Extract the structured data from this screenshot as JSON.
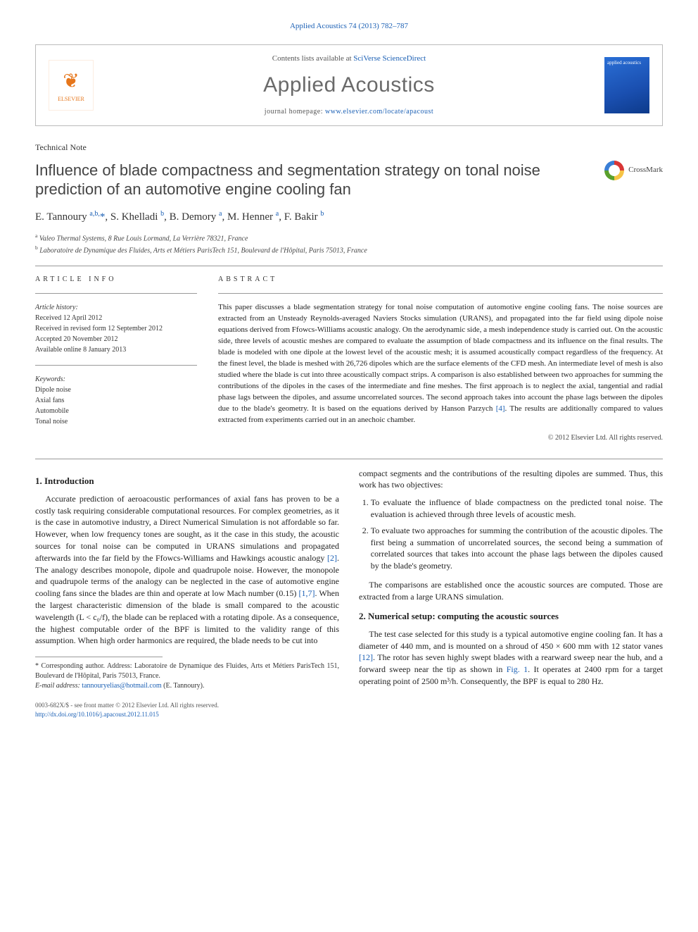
{
  "header": {
    "citation": "Applied Acoustics 74 (2013) 782–787",
    "contents_prefix": "Contents lists available at ",
    "contents_link": "SciVerse ScienceDirect",
    "journal_name": "Applied Acoustics",
    "homepage_prefix": "journal homepage: ",
    "homepage_url": "www.elsevier.com/locate/apacoust",
    "publisher": "ELSEVIER",
    "cover_label": "applied acoustics"
  },
  "article": {
    "type": "Technical Note",
    "title": "Influence of blade compactness and segmentation strategy on tonal noise prediction of an automotive engine cooling fan",
    "crossmark": "CrossMark",
    "authors_html": "E. Tannoury <sup>a,b,</sup><span class='star'>*</span>, S. Khelladi <sup>b</sup>, B. Demory <sup>a</sup>, M. Henner <sup>a</sup>, F. Bakir <sup>b</sup>",
    "affiliations": [
      "a Valeo Thermal Systems, 8 Rue Louis Lormand, La Verrière 78321, France",
      "b Laboratoire de Dynamique des Fluides, Arts et Métiers ParisTech 151, Boulevard de l'Hôpital, Paris 75013, France"
    ]
  },
  "info": {
    "heading": "ARTICLE INFO",
    "history_label": "Article history:",
    "history": [
      "Received 12 April 2012",
      "Received in revised form 12 September 2012",
      "Accepted 20 November 2012",
      "Available online 8 January 2013"
    ],
    "keywords_label": "Keywords:",
    "keywords": [
      "Dipole noise",
      "Axial fans",
      "Automobile",
      "Tonal noise"
    ]
  },
  "abstract": {
    "heading": "ABSTRACT",
    "text": "This paper discusses a blade segmentation strategy for tonal noise computation of automotive engine cooling fans. The noise sources are extracted from an Unsteady Reynolds-averaged Naviers Stocks simulation (URANS), and propagated into the far field using dipole noise equations derived from Ffowcs-Williams acoustic analogy. On the aerodynamic side, a mesh independence study is carried out. On the acoustic side, three levels of acoustic meshes are compared to evaluate the assumption of blade compactness and its influence on the final results. The blade is modeled with one dipole at the lowest level of the acoustic mesh; it is assumed acoustically compact regardless of the frequency. At the finest level, the blade is meshed with 26,726 dipoles which are the surface elements of the CFD mesh. An intermediate level of mesh is also studied where the blade is cut into three acoustically compact strips. A comparison is also established between two approaches for summing the contributions of the dipoles in the cases of the intermediate and fine meshes. The first approach is to neglect the axial, tangential and radial phase lags between the dipoles, and assume uncorrelated sources. The second approach takes into account the phase lags between the dipoles due to the blade's geometry. It is based on the equations derived by Hanson Parzych ",
    "ref": "[4]",
    "text_tail": ". The results are additionally compared to values extracted from experiments carried out in an anechoic chamber.",
    "copyright": "© 2012 Elsevier Ltd. All rights reserved."
  },
  "sections": {
    "intro_head": "1. Introduction",
    "intro_p1a": "Accurate prediction of aeroacoustic performances of axial fans has proven to be a costly task requiring considerable computational resources. For complex geometries, as it is the case in automotive industry, a Direct Numerical Simulation is not affordable so far. However, when low frequency tones are sought, as it the case in this study, the acoustic sources for tonal noise can be computed in URANS simulations and propagated afterwards into the far field by the Ffowcs-Williams and Hawkings acoustic analogy ",
    "intro_r2": "[2]",
    "intro_p1b": ". The analogy describes monopole, dipole and quadrupole noise. However, the monopole and quadrupole terms of the analogy can be neglected in the case of automotive engine cooling fans since the blades are thin and operate at low Mach number (0.15) ",
    "intro_r17": "[1,7]",
    "intro_p1c": ". When the largest characteristic dimension of the blade is small compared to the acoustic wavelength (L < c₀/f), the blade can be replaced with a rotating dipole. As a consequence, the highest computable order of the BPF is limited to the validity range of this assumption. When high order harmonics are required, the blade needs to be cut into ",
    "col2_p1": "compact segments and the contributions of the resulting dipoles are summed. Thus, this work has two objectives:",
    "obj1": "To evaluate the influence of blade compactness on the predicted tonal noise. The evaluation is achieved through three levels of acoustic mesh.",
    "obj2": "To evaluate two approaches for summing the contribution of the acoustic dipoles. The first being a summation of uncorrelated sources, the second being a summation of correlated sources that takes into account the phase lags between the dipoles caused by the blade's geometry.",
    "col2_p2": "The comparisons are established once the acoustic sources are computed. Those are extracted from a large URANS simulation.",
    "num_head": "2. Numerical setup: computing the acoustic sources",
    "num_p1a": "The test case selected for this study is a typical automotive engine cooling fan. It has a diameter of 440 mm, and is mounted on a shroud of 450 × 600 mm with 12 stator vanes ",
    "num_r12": "[12]",
    "num_p1b": ". The rotor has seven highly swept blades with a rearward sweep near the hub, and a forward sweep near the tip as shown in ",
    "num_fig1": "Fig. 1",
    "num_p1c": ". It operates at 2400 rpm for a target operating point of 2500 m³/h. Consequently, the BPF is equal to 280 Hz."
  },
  "footnotes": {
    "corr_label": "* Corresponding author. Address: Laboratoire de Dynamique des Fluides, Arts et Métiers ParisTech 151, Boulevard de l'Hôpital, Paris 75013, France.",
    "email_label": "E-mail address: ",
    "email": "tannouryelias@hotmail.com",
    "email_who": " (E. Tannoury)."
  },
  "footer": {
    "line1": "0003-682X/$ - see front matter © 2012 Elsevier Ltd. All rights reserved.",
    "doi": "http://dx.doi.org/10.1016/j.apacoust.2012.11.015"
  },
  "colors": {
    "link": "#1a5fb4",
    "elsevier": "#e6761b"
  }
}
